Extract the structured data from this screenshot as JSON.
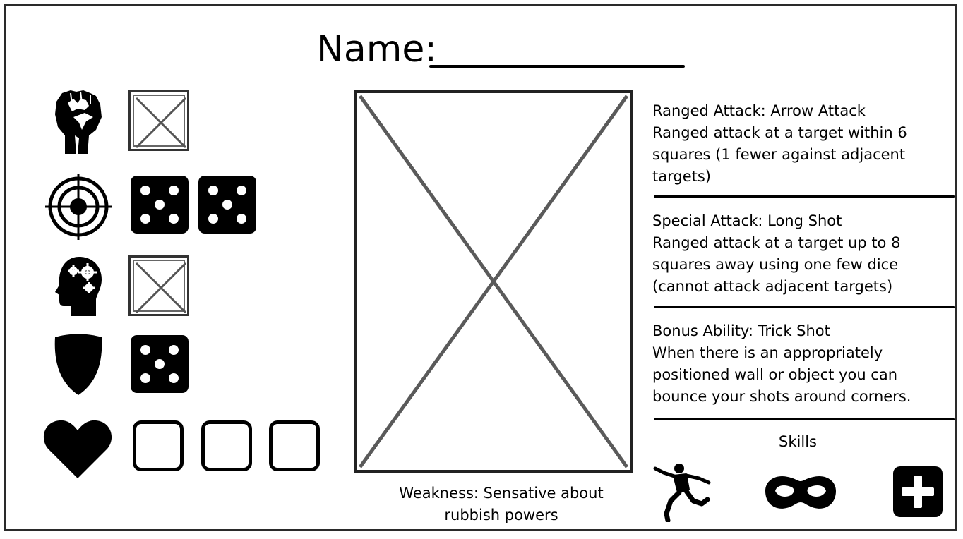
{
  "card": {
    "name_label": "Name:"
  },
  "stats": [
    {
      "icon": "fist-icon",
      "slots": [
        "empty-x"
      ]
    },
    {
      "icon": "target-icon",
      "slots": [
        "die-5",
        "die-5"
      ]
    },
    {
      "icon": "brain-gears-icon",
      "slots": [
        "empty-x"
      ]
    },
    {
      "icon": "shield-icon",
      "slots": [
        "die-5"
      ]
    },
    {
      "icon": "heart-icon",
      "slots": [
        "health-box",
        "health-box",
        "health-box"
      ]
    }
  ],
  "portrait": {
    "placeholder": "image-placeholder"
  },
  "weakness": {
    "line1": "Weakness: Sensative about",
    "line2": "rubbish powers"
  },
  "abilities": [
    {
      "lines": [
        "Ranged Attack: Arrow Attack",
        "Ranged attack at a target within 6",
        "squares (1 fewer against adjacent",
        "targets)"
      ]
    },
    {
      "lines": [
        "Special Attack: Long Shot",
        "Ranged attack at a target up to 8",
        "squares away using one few dice",
        "(cannot attack adjacent targets)"
      ]
    },
    {
      "lines": [
        "Bonus Ability: Trick Shot",
        "When there is an appropriately",
        "positioned wall or object you can",
        "bounce your shots around corners."
      ]
    }
  ],
  "skills": {
    "title": "Skills",
    "icons": [
      "leaping-runner-icon",
      "domino-mask-icon",
      "medical-cross-icon"
    ]
  },
  "colors": {
    "ink": "#000000",
    "frame": "#2a2a2a",
    "placeholder_line": "#5a5a5a",
    "background": "#ffffff"
  }
}
